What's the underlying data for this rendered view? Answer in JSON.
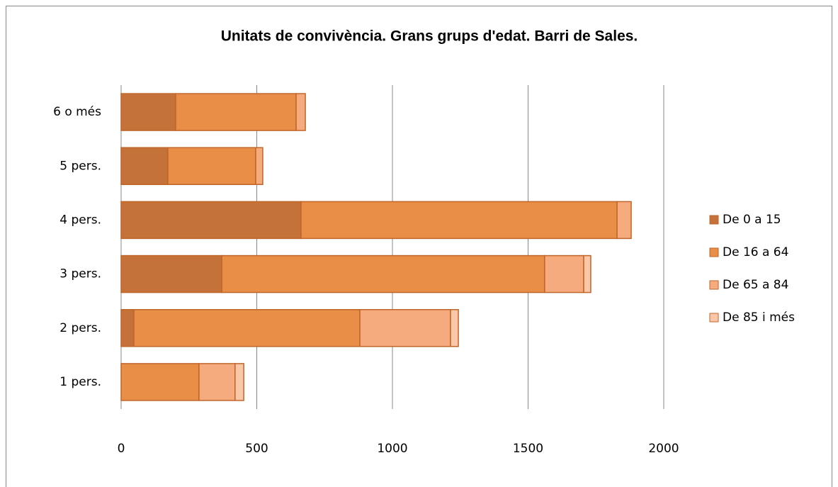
{
  "chart_data": {
    "type": "bar",
    "orientation": "horizontal",
    "stacked": true,
    "title": "Unitats de convivència. Grans grups d'edat. Barri de Sales.",
    "categories": [
      "1 pers.",
      "2 pers.",
      "3 pers.",
      "4 pers.",
      "5 pers.",
      "6 o més"
    ],
    "series": [
      {
        "name": "De 0 a 15",
        "color": "#c5723a",
        "values": [
          0,
          47,
          371,
          663,
          172,
          201
        ]
      },
      {
        "name": "De 16 a 64",
        "color": "#e98e46",
        "values": [
          287,
          833,
          1190,
          1165,
          324,
          444
        ]
      },
      {
        "name": "De 65 a 84",
        "color": "#f6ab7e",
        "values": [
          133,
          334,
          144,
          52,
          26,
          34
        ]
      },
      {
        "name": "De 85 i més",
        "color": "#fac8a8",
        "values": [
          32,
          29,
          26,
          0,
          0,
          0
        ]
      }
    ],
    "xlim": [
      0,
      2000
    ],
    "xticks": [
      0,
      500,
      1000,
      1500,
      2000
    ],
    "grid": true,
    "legend": "right"
  }
}
